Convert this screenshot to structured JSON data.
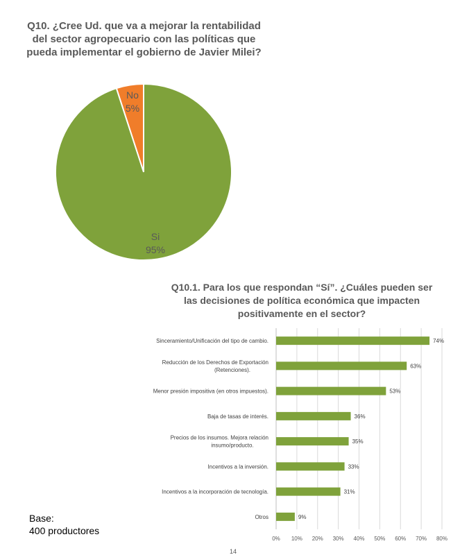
{
  "page": {
    "page_number": "14"
  },
  "footer": {
    "base_label": "Base:",
    "base_value": "400 productores"
  },
  "colors": {
    "green": "#7FA23B",
    "orange": "#F07D2A",
    "label_dark": "#595959",
    "axis": "#d9d9d9"
  },
  "chart_data": [
    {
      "type": "pie",
      "title": "Q10. ¿Cree Ud. que va a mejorar la rentabilidad del sector agropecuario con las políticas que pueda implementar el gobierno de Javier Milei?",
      "slices": [
        {
          "label": "No",
          "value": 5,
          "value_label": "5%",
          "color": "#F07D2A"
        },
        {
          "label": "Si",
          "value": 95,
          "value_label": "95%",
          "color": "#7FA23B"
        }
      ]
    },
    {
      "type": "bar",
      "orientation": "horizontal",
      "title": "Q10.1. Para los que respondan “Sí”. ¿Cuáles pueden ser las decisiones de política económica que impacten positivamente en el sector?",
      "categories": [
        [
          "Sinceramiento/Unificación del tipo de cambio."
        ],
        [
          "Reducción de los Derechos de Exportación",
          "(Retenciones)."
        ],
        [
          "Menor presión impositiva (en otros impuestos)."
        ],
        [
          "Baja de tasas de interés."
        ],
        [
          "Precios de los insumos. Mejora relación",
          "insumo/producto."
        ],
        [
          "Incentivos a la inversión."
        ],
        [
          "Incentivos a la incorporación de tecnología."
        ],
        [
          "Otros"
        ]
      ],
      "values": [
        74,
        63,
        53,
        36,
        35,
        33,
        31,
        9
      ],
      "value_labels": [
        "74%",
        "63%",
        "53%",
        "36%",
        "35%",
        "33%",
        "31%",
        "9%"
      ],
      "xlim": [
        0,
        80
      ],
      "x_ticks": [
        "0%",
        "10%",
        "20%",
        "30%",
        "40%",
        "50%",
        "60%",
        "70%",
        "80%"
      ],
      "grid": true,
      "color": "#7FA23B"
    }
  ]
}
